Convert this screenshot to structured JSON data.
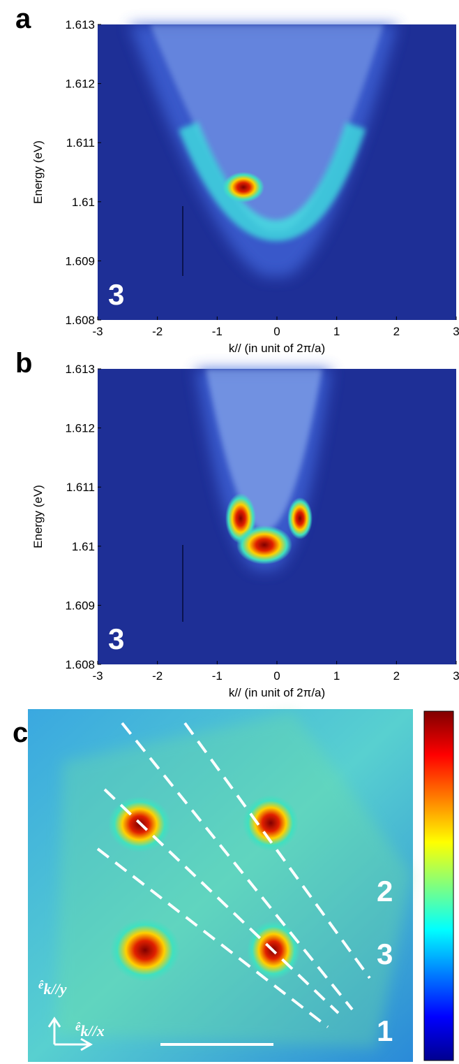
{
  "chart_data": [
    {
      "type": "image",
      "panel": "a",
      "annotation": "3",
      "xlabel": "k// (in unit of 2π/a)",
      "ylabel": "Energy (eV)",
      "xlim": [
        -3,
        3
      ],
      "ylim": [
        1.608,
        1.613
      ],
      "xticks": [
        -3,
        -2,
        -1,
        0,
        1,
        2,
        3
      ],
      "yticks": [
        1.608,
        1.609,
        1.61,
        1.611,
        1.612,
        1.613
      ]
    },
    {
      "type": "image",
      "panel": "b",
      "annotation": "3",
      "xlabel": "k// (in unit of 2π/a)",
      "ylabel": "Energy (eV)",
      "xlim": [
        -3,
        3
      ],
      "ylim": [
        1.608,
        1.613
      ],
      "xticks": [
        -3,
        -2,
        -1,
        0,
        1,
        2,
        3
      ],
      "yticks": [
        1.608,
        1.609,
        1.61,
        1.611,
        1.612,
        1.613
      ]
    },
    {
      "type": "map",
      "panel": "c",
      "line_labels": [
        "2",
        "3",
        "1"
      ],
      "axis_y": {
        "symbol": "ê",
        "subscript": "k//y"
      },
      "axis_x": {
        "symbol": "ê",
        "subscript": "k//x"
      }
    }
  ]
}
